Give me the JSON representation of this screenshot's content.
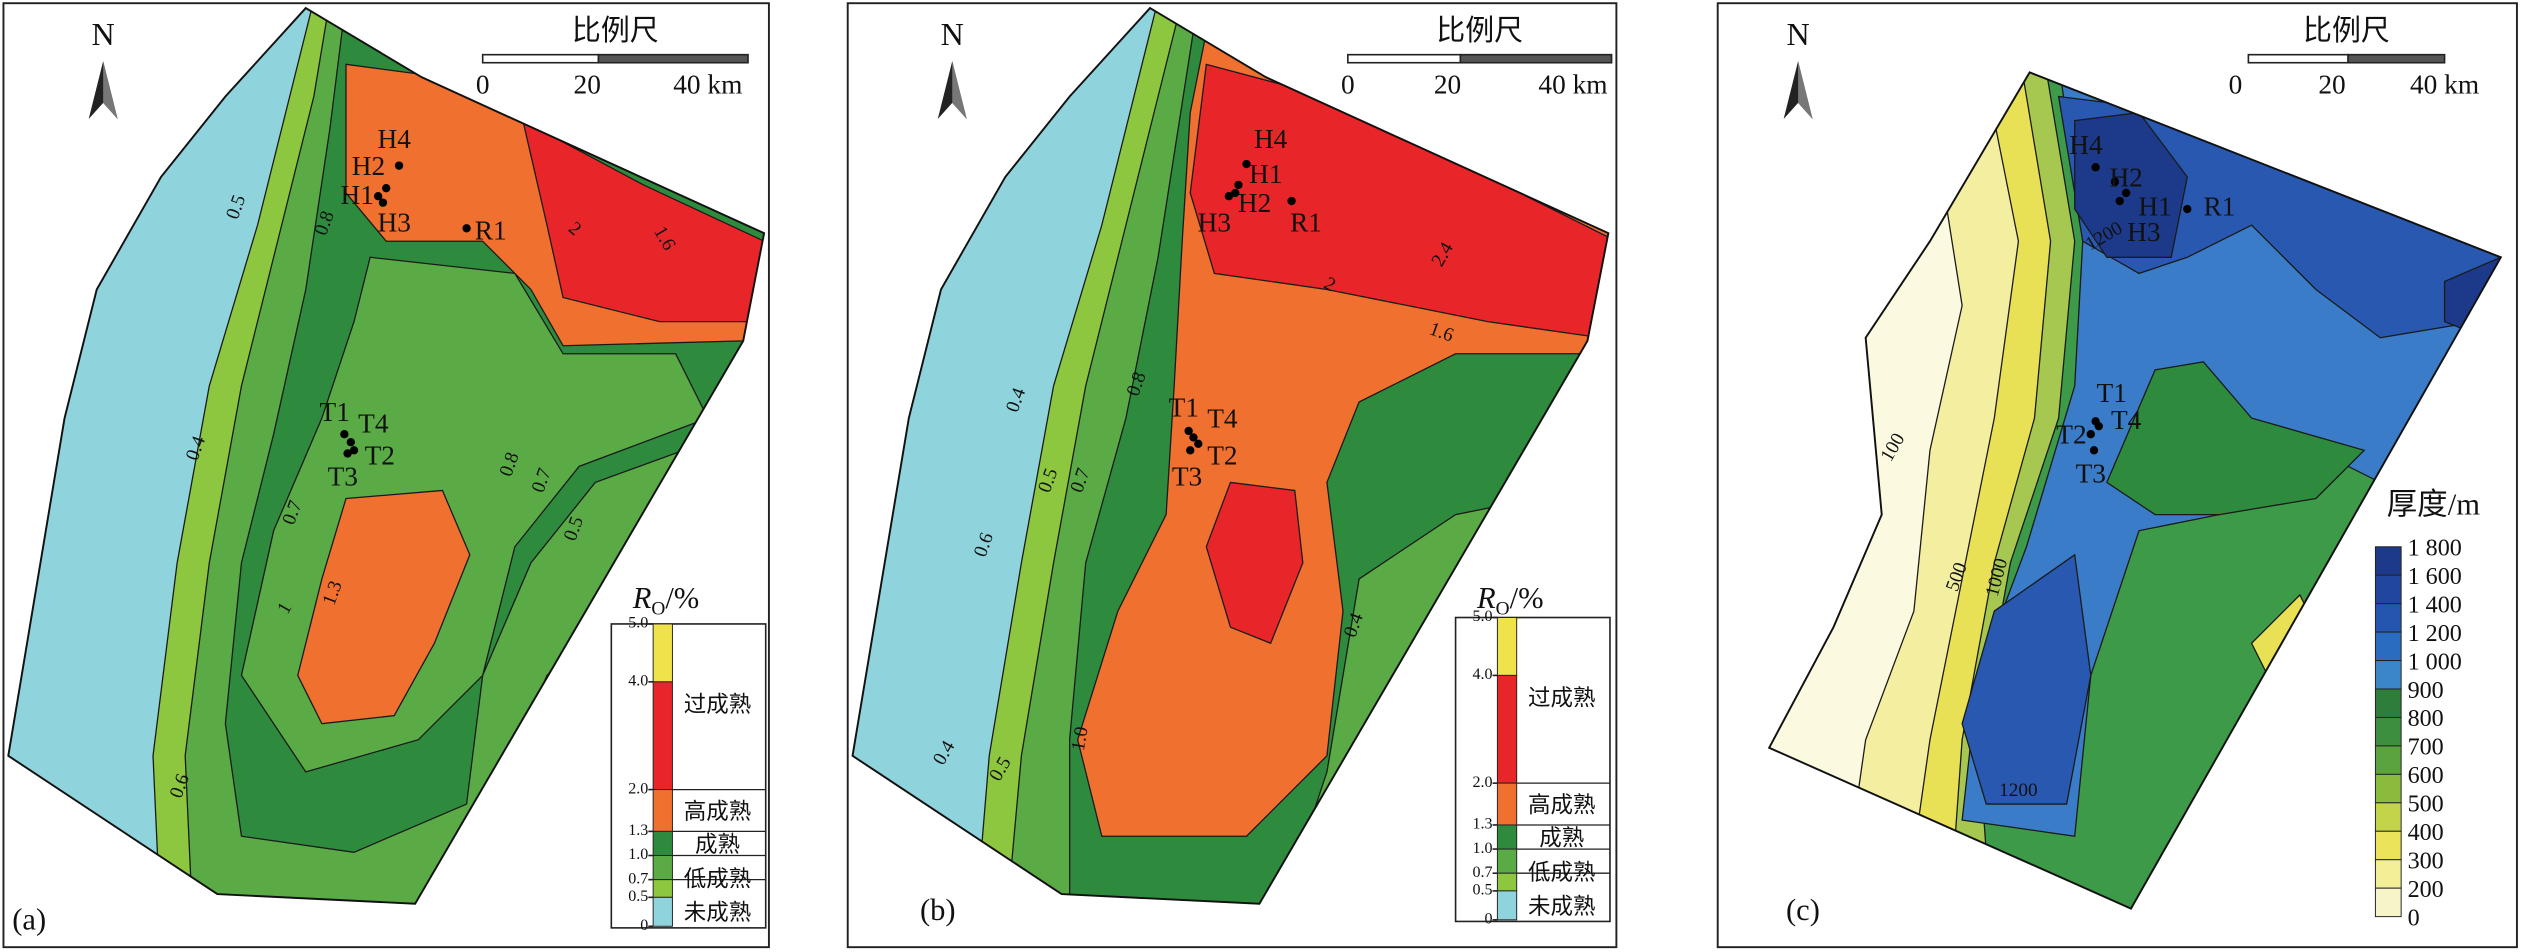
{
  "panels": [
    {
      "label": "(a)",
      "north": "N",
      "scale": {
        "title": "比例尺",
        "ticks": [
          "0",
          "20",
          "40 km"
        ]
      },
      "wells": [
        "H4",
        "H2",
        "H1",
        "H3",
        "R1",
        "T1",
        "T4",
        "T2",
        "T3"
      ],
      "contour_labels": [
        "0.4",
        "0.5",
        "0.6",
        "0.7",
        "0.8",
        "1",
        "1.3",
        "2",
        "1.6",
        "0.8",
        "0.7",
        "0.5"
      ],
      "legend": {
        "title": {
          "symbol": "R",
          "subscript": "O",
          "unit": "/%"
        },
        "ticks": [
          "5.0",
          "4.0",
          "2.0",
          "1.3",
          "1.0",
          "0.7",
          "0.5",
          "0"
        ],
        "classes": [
          "过成熟",
          "高成熟",
          "成熟",
          "低成熟",
          "未成熟"
        ]
      }
    },
    {
      "label": "(b)",
      "north": "N",
      "scale": {
        "title": "比例尺",
        "ticks": [
          "0",
          "20",
          "40 km"
        ]
      },
      "wells": [
        "H4",
        "H2",
        "H1",
        "H3",
        "R1",
        "T1",
        "T4",
        "T2",
        "T3"
      ],
      "contour_labels": [
        "0.4",
        "0.5",
        "0.6",
        "0.7",
        "0.8",
        "1.0",
        "1.6",
        "2",
        "2.4",
        "0.4",
        "0.5",
        "0.4"
      ],
      "legend": {
        "title": {
          "symbol": "R",
          "subscript": "O",
          "unit": "/%"
        },
        "ticks": [
          "5.0",
          "4.0",
          "2.0",
          "1.3",
          "1.0",
          "0.7",
          "0.5",
          "0"
        ],
        "classes": [
          "过成熟",
          "高成熟",
          "成熟",
          "低成熟",
          "未成熟"
        ]
      }
    },
    {
      "label": "(c)",
      "north": "N",
      "scale": {
        "title": "比例尺",
        "ticks": [
          "0",
          "20",
          "40 km"
        ]
      },
      "wells": [
        "H4",
        "H2",
        "H1",
        "H3",
        "R1",
        "T1",
        "T4",
        "T2",
        "T3"
      ],
      "contour_labels": [
        "100",
        "500",
        "1000",
        "1200",
        "1200"
      ],
      "legend": {
        "title": "厚度/m",
        "ticks": [
          "1 800",
          "1 600",
          "1 400",
          "1 200",
          "1 000",
          "900",
          "800",
          "700",
          "600",
          "500",
          "400",
          "300",
          "200",
          "0"
        ]
      }
    }
  ]
}
